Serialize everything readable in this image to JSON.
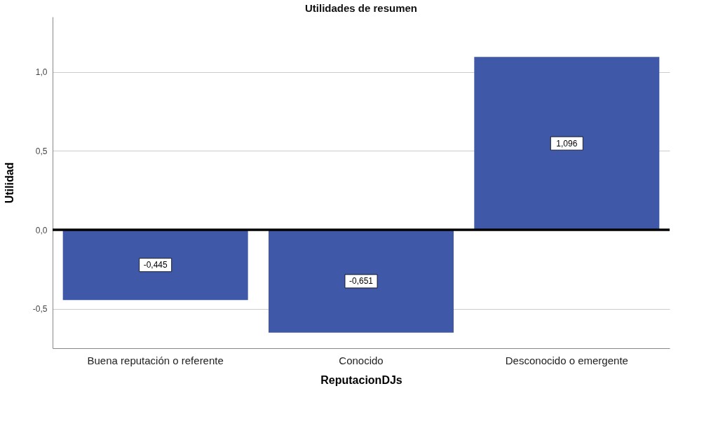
{
  "chart_data": {
    "type": "bar",
    "title": "Utilidades de resumen",
    "xlabel": "ReputacionDJs",
    "ylabel": "Utilidad",
    "categories": [
      "Buena reputación o referente",
      "Conocido",
      "Desconocido o emergente"
    ],
    "values": [
      -0.445,
      -0.651,
      1.096
    ],
    "color": "#3f58a7",
    "value_labels": [
      "-0,445",
      "-0,651",
      "1,096"
    ],
    "ylim": [
      -0.75,
      1.35
    ],
    "yticks": [
      {
        "value": -0.5,
        "label": "-0,5"
      },
      {
        "value": 0,
        "label": "0,0"
      },
      {
        "value": 0.5,
        "label": "0,5"
      },
      {
        "value": 1.0,
        "label": "1,0"
      }
    ],
    "ref_lines": [
      {
        "axis": "y",
        "value": 0,
        "label": null,
        "color": "#000000"
      }
    ],
    "grid": "y"
  }
}
